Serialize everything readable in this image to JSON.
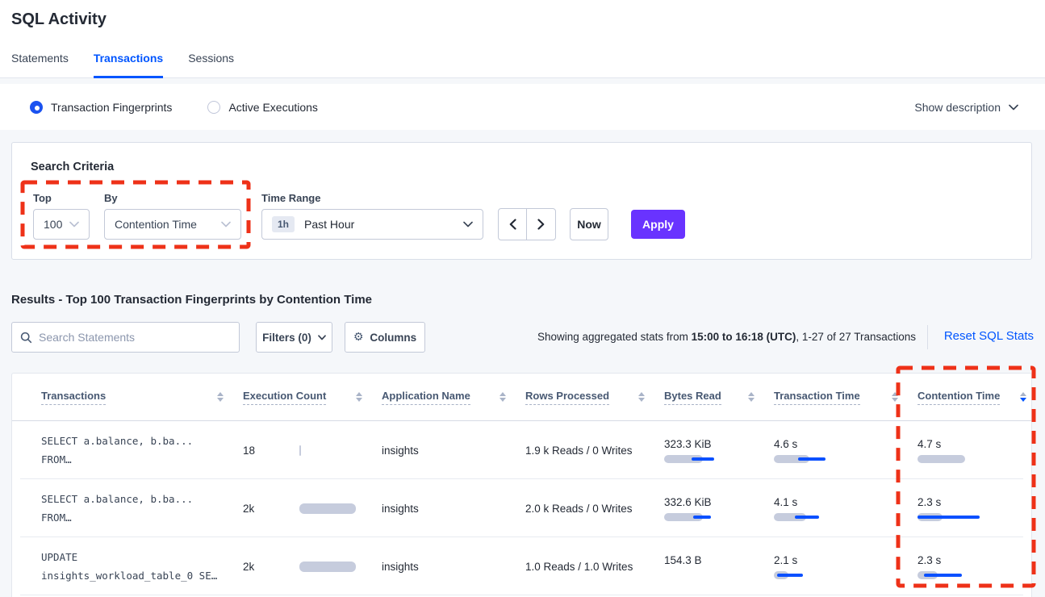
{
  "page": {
    "title": "SQL Activity"
  },
  "tabs": {
    "items": [
      {
        "label": "Statements"
      },
      {
        "label": "Transactions"
      },
      {
        "label": "Sessions"
      }
    ],
    "active": "Transactions"
  },
  "view_bar": {
    "radios": [
      {
        "label": "Transaction Fingerprints",
        "selected": true
      },
      {
        "label": "Active Executions",
        "selected": false
      }
    ],
    "show_description_label": "Show description"
  },
  "search_criteria": {
    "title": "Search Criteria",
    "top": {
      "label": "Top",
      "value": "100"
    },
    "by": {
      "label": "By",
      "value": "Contention Time"
    },
    "time_range": {
      "label": "Time Range",
      "badge": "1h",
      "value": "Past Hour"
    },
    "now_label": "Now",
    "apply_label": "Apply"
  },
  "results": {
    "heading": "Results - Top 100 Transaction Fingerprints by Contention Time",
    "search_placeholder": "Search Statements",
    "filters_label": "Filters (0)",
    "columns_label": "Columns",
    "stats": {
      "prefix": "Showing aggregated stats from ",
      "bold": "15:00 to 16:18 (UTC)",
      "suffix": ", 1-27 of 27 Transactions"
    },
    "reset_link": "Reset SQL Stats"
  },
  "table": {
    "columns": [
      {
        "label": "Transactions",
        "sort": "none"
      },
      {
        "label": "Execution Count",
        "sort": "none"
      },
      {
        "label": "Application Name",
        "sort": "none"
      },
      {
        "label": "Rows Processed",
        "sort": "none"
      },
      {
        "label": "Bytes Read",
        "sort": "none"
      },
      {
        "label": "Transaction Time",
        "sort": "none"
      },
      {
        "label": "Contention Time",
        "sort": "desc"
      }
    ],
    "rows": [
      {
        "query_line1": "SELECT a.balance, b.ba...",
        "query_line2": "FROM…",
        "execution_count": {
          "value": "18",
          "bar": {
            "gray": 2
          }
        },
        "application_name": "insights",
        "rows_processed": "1.9 k Reads / 0 Writes",
        "bytes_read": {
          "value": "323.3 KiB",
          "bar": {
            "gray": 48,
            "blue_start": 34,
            "blue_end": 62
          }
        },
        "transaction_time": {
          "value": "4.6 s",
          "bar": {
            "gray": 44,
            "blue_start": 30,
            "blue_end": 64
          }
        },
        "contention_time": {
          "value": "4.7 s",
          "bar": {
            "gray": 59
          }
        }
      },
      {
        "query_line1": "SELECT a.balance, b.ba...",
        "query_line2": "FROM…",
        "execution_count": {
          "value": "2k",
          "bar": {
            "gray": 70
          }
        },
        "application_name": "insights",
        "rows_processed": "2.0 k Reads / 0 Writes",
        "bytes_read": {
          "value": "332.6 KiB",
          "bar": {
            "gray": 48,
            "blue_start": 36,
            "blue_end": 58
          }
        },
        "transaction_time": {
          "value": "4.1 s",
          "bar": {
            "gray": 40,
            "blue_start": 26,
            "blue_end": 56
          }
        },
        "contention_time": {
          "value": "2.3 s",
          "bar": {
            "gray": 31,
            "blue_start": 0,
            "blue_end": 77
          }
        }
      },
      {
        "query_line1": "UPDATE",
        "query_line2": "insights_workload_table_0 SE…",
        "execution_count": {
          "value": "2k",
          "bar": {
            "gray": 70
          }
        },
        "application_name": "insights",
        "rows_processed": "1.0 Reads / 1.0 Writes",
        "bytes_read": {
          "value": "154.3 B",
          "bar": null
        },
        "transaction_time": {
          "value": "2.1 s",
          "bar": {
            "gray": 18,
            "blue_start": 4,
            "blue_end": 36
          }
        },
        "contention_time": {
          "value": "2.3 s",
          "bar": {
            "gray": 25,
            "blue_start": 8,
            "blue_end": 55
          }
        }
      }
    ]
  },
  "colors": {
    "accent_blue": "#0055ff",
    "apply_purple": "#6933ff",
    "annotation_red": "#ee3118",
    "bar_gray": "#c6ccdd",
    "bar_blue": "#0b50ff"
  }
}
